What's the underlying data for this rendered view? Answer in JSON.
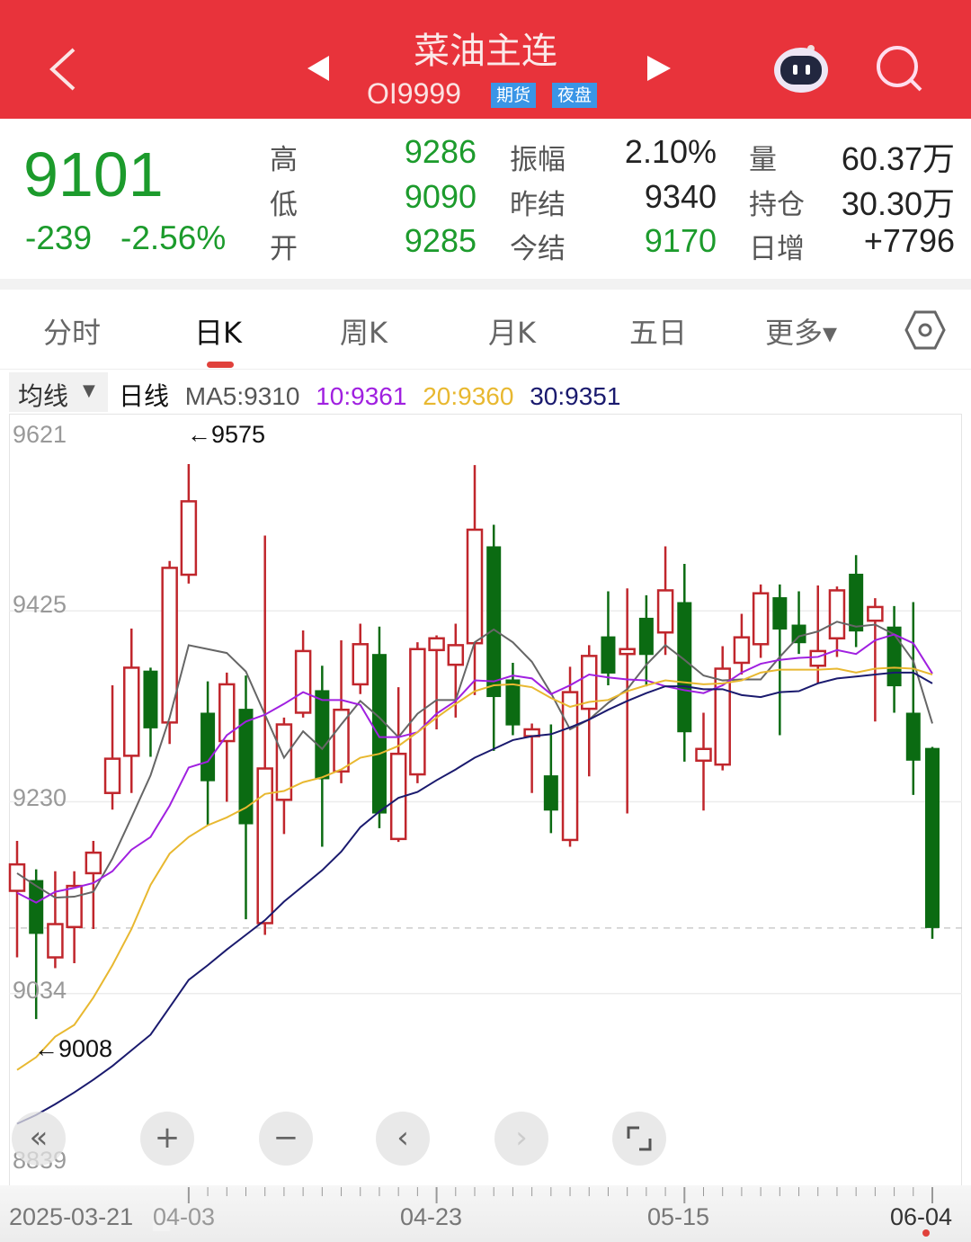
{
  "header": {
    "title": "菜油主连",
    "code": "OI9999",
    "tags": [
      "期货",
      "夜盘"
    ],
    "bg_color": "#e8333b",
    "icons": [
      "back-chevron-icon",
      "prev-triangle-icon",
      "next-triangle-icon",
      "robot-assistant-icon",
      "search-icon"
    ]
  },
  "quote": {
    "price": "9101",
    "change": "-239",
    "change_pct": "-2.56%",
    "fields": [
      {
        "label": "高",
        "value": "9286"
      },
      {
        "label": "低",
        "value": "9090"
      },
      {
        "label": "开",
        "value": "9285"
      },
      {
        "label": "振幅",
        "value": "2.10%"
      },
      {
        "label": "昨结",
        "value": "9340"
      },
      {
        "label": "今结",
        "value": "9170"
      },
      {
        "label": "量",
        "value": "60.37万"
      },
      {
        "label": "持仓",
        "value": "30.30万"
      },
      {
        "label": "日增",
        "value": "+7796"
      }
    ],
    "down_color": "#1c9b2c"
  },
  "tabs": [
    {
      "label": "分时"
    },
    {
      "label": "日K",
      "active": true
    },
    {
      "label": "周K"
    },
    {
      "label": "月K"
    },
    {
      "label": "五日"
    },
    {
      "label": "更多▾"
    }
  ],
  "ma_bar": {
    "selector": "均线",
    "period": "日线",
    "ma5": "MA5:9310",
    "ma10": "10:9361",
    "ma20": "20:9360",
    "ma30": "30:9351",
    "colors": {
      "ma5": "#666666",
      "ma10": "#a020e0",
      "ma20": "#e8b830",
      "ma30": "#1a1a6e"
    }
  },
  "controls": [
    "collapse-icon",
    "zoom-in-icon",
    "zoom-out-icon",
    "pan-left-icon",
    "pan-right-icon",
    "fullscreen-icon"
  ],
  "chart_data": {
    "type": "candlestick",
    "ylim": [
      8839,
      9621
    ],
    "y_ticks": [
      "9621",
      "9425",
      "9230",
      "9034",
      "8839"
    ],
    "reference_line": 9101,
    "annotations": [
      {
        "text": "←9575",
        "index": 9
      },
      {
        "text": "←9008",
        "index": 1
      }
    ],
    "x_tick_labels": [
      {
        "label": "2025-03-21",
        "index": 0
      },
      {
        "label": "04-03",
        "index": 9
      },
      {
        "label": "04-23",
        "index": 22
      },
      {
        "label": "05-15",
        "index": 35
      },
      {
        "label": "06-04",
        "index": 48
      }
    ],
    "up_color": "#c0262c",
    "down_color": "#0b6b12",
    "ohlc": [
      [
        9139,
        9190,
        9071,
        9166
      ],
      [
        9150,
        9161,
        9008,
        9095
      ],
      [
        9071,
        9159,
        9060,
        9105
      ],
      [
        9102,
        9159,
        9065,
        9144
      ],
      [
        9157,
        9190,
        9100,
        9178
      ],
      [
        9239,
        9349,
        9222,
        9274
      ],
      [
        9277,
        9407,
        9239,
        9367
      ],
      [
        9364,
        9367,
        9276,
        9305
      ],
      [
        9311,
        9476,
        9289,
        9469
      ],
      [
        9462,
        9575,
        9453,
        9537
      ],
      [
        9321,
        9353,
        9206,
        9251
      ],
      [
        9292,
        9362,
        9230,
        9350
      ],
      [
        9325,
        9359,
        9110,
        9207
      ],
      [
        9106,
        9502,
        9094,
        9264
      ],
      [
        9232,
        9316,
        9197,
        9309
      ],
      [
        9321,
        9405,
        9316,
        9384
      ],
      [
        9344,
        9369,
        9184,
        9253
      ],
      [
        9261,
        9395,
        9249,
        9324
      ],
      [
        9350,
        9412,
        9340,
        9391
      ],
      [
        9381,
        9409,
        9203,
        9218
      ],
      [
        9192,
        9347,
        9189,
        9279
      ],
      [
        9258,
        9393,
        9249,
        9386
      ],
      [
        9385,
        9400,
        9304,
        9397
      ],
      [
        9370,
        9412,
        9316,
        9390
      ],
      [
        9392,
        9574,
        9339,
        9508
      ],
      [
        9491,
        9513,
        9282,
        9337
      ],
      [
        9355,
        9372,
        9298,
        9308
      ],
      [
        9297,
        9310,
        9239,
        9304
      ],
      [
        9257,
        9309,
        9198,
        9221
      ],
      [
        9191,
        9368,
        9184,
        9342
      ],
      [
        9325,
        9390,
        9256,
        9379
      ],
      [
        9399,
        9445,
        9349,
        9361
      ],
      [
        9381,
        9448,
        9218,
        9386
      ],
      [
        9418,
        9441,
        9348,
        9380
      ],
      [
        9403,
        9491,
        9380,
        9446
      ],
      [
        9434,
        9473,
        9271,
        9301
      ],
      [
        9272,
        9321,
        9221,
        9284
      ],
      [
        9268,
        9389,
        9262,
        9366
      ],
      [
        9372,
        9422,
        9360,
        9398
      ],
      [
        9391,
        9452,
        9377,
        9443
      ],
      [
        9439,
        9452,
        9298,
        9406
      ],
      [
        9411,
        9445,
        9381,
        9392
      ],
      [
        9369,
        9451,
        9351,
        9384
      ],
      [
        9397,
        9450,
        9378,
        9446
      ],
      [
        9463,
        9482,
        9388,
        9404
      ],
      [
        9415,
        9438,
        9312,
        9429
      ],
      [
        9409,
        9430,
        9321,
        9348
      ],
      [
        9321,
        9434,
        9237,
        9272
      ],
      [
        9285,
        9286,
        9090,
        9101
      ]
    ],
    "series": [
      {
        "name": "MA5",
        "values": [
          9157,
          9144,
          9132,
          9133,
          9138,
          9172,
          9214,
          9257,
          9316,
          9390,
          9386,
          9382,
          9363,
          9319,
          9275,
          9302,
          9284,
          9309,
          9333,
          9316,
          9296,
          9320,
          9334,
          9334,
          9393,
          9406,
          9393,
          9373,
          9341,
          9304,
          9314,
          9331,
          9345,
          9370,
          9390,
          9375,
          9359,
          9354,
          9355,
          9355,
          9378,
          9399,
          9404,
          9414,
          9409,
          9411,
          9401,
          9374,
          9310
        ]
      },
      {
        "name": "10",
        "values": [
          9137,
          9127,
          9138,
          9142,
          9147,
          9159,
          9181,
          9194,
          9226,
          9265,
          9271,
          9298,
          9312,
          9319,
          9330,
          9342,
          9334,
          9334,
          9329,
          9296,
          9296,
          9301,
          9320,
          9333,
          9354,
          9353,
          9359,
          9356,
          9340,
          9349,
          9360,
          9357,
          9355,
          9354,
          9348,
          9344,
          9341,
          9349,
          9362,
          9371,
          9375,
          9377,
          9378,
          9385,
          9381,
          9395,
          9401,
          9392,
          9361
        ]
      },
      {
        "name": "20",
        "values": [
          8956,
          8969,
          8990,
          9002,
          9030,
          9063,
          9100,
          9145,
          9177,
          9194,
          9206,
          9214,
          9224,
          9238,
          9241,
          9250,
          9255,
          9263,
          9275,
          9279,
          9287,
          9301,
          9316,
          9330,
          9343,
          9349,
          9350,
          9347,
          9336,
          9327,
          9332,
          9334,
          9343,
          9349,
          9354,
          9352,
          9350,
          9351,
          9354,
          9362,
          9365,
          9365,
          9365,
          9366,
          9362,
          9366,
          9367,
          9366,
          9360
        ]
      },
      {
        "name": "30",
        "values": [
          8901,
          8910,
          8921,
          8933,
          8946,
          8960,
          8976,
          8992,
          9020,
          9048,
          9063,
          9079,
          9094,
          9109,
          9128,
          9144,
          9160,
          9179,
          9204,
          9220,
          9234,
          9240,
          9252,
          9263,
          9275,
          9284,
          9293,
          9297,
          9299,
          9306,
          9314,
          9324,
          9333,
          9341,
          9348,
          9348,
          9345,
          9345,
          9339,
          9337,
          9342,
          9343,
          9351,
          9356,
          9358,
          9360,
          9362,
          9362,
          9351
        ]
      }
    ]
  }
}
